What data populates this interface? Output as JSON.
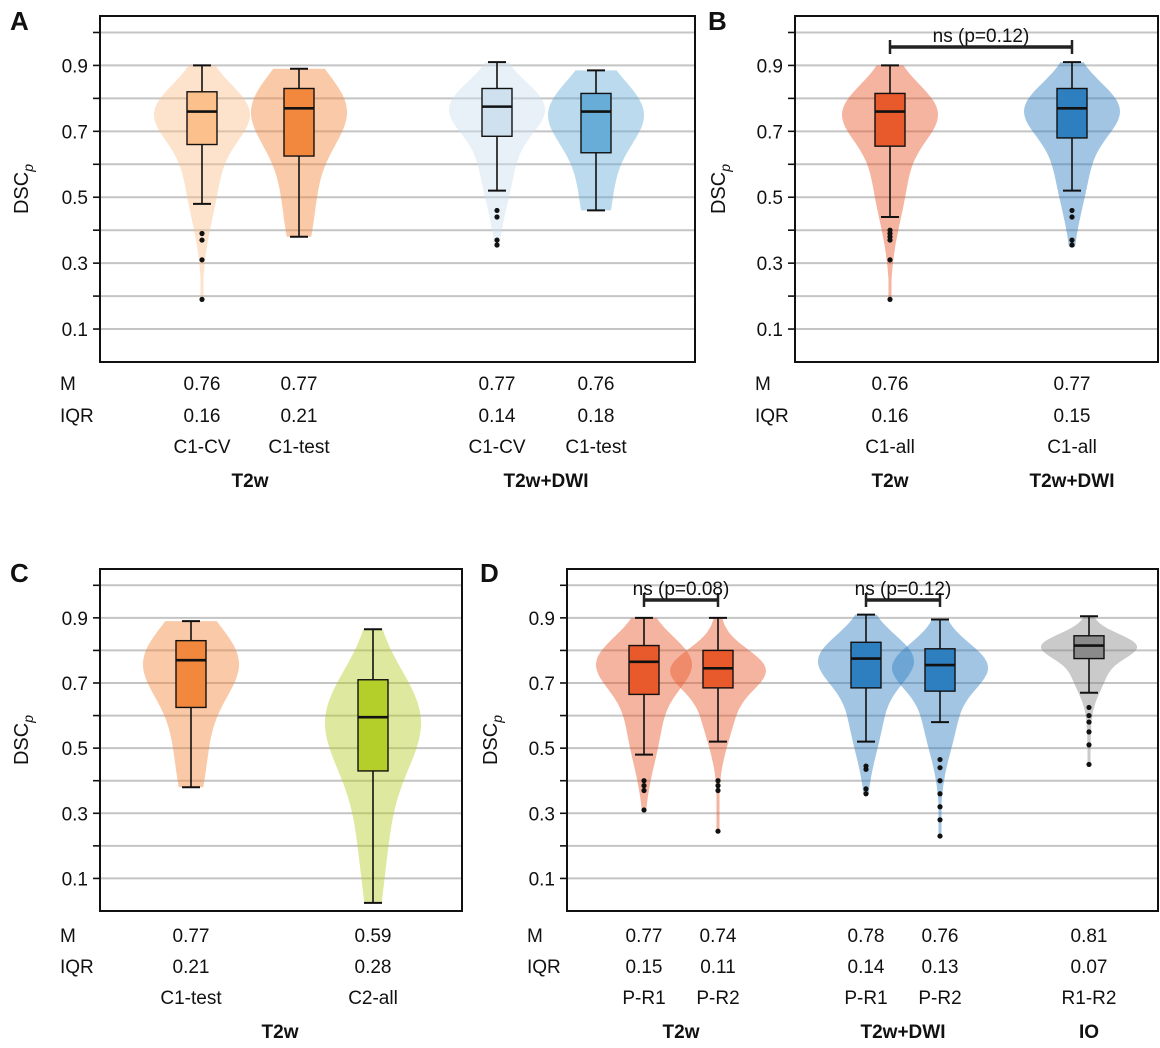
{
  "stat_labels": {
    "median": "M",
    "iqr": "IQR"
  },
  "colors": {
    "t2w_light": "#fbc08c",
    "t2w_mid": "#f2883d",
    "t2w_dark": "#e8592b",
    "dwi_light": "#cfe1ef",
    "dwi_mid": "#68acd8",
    "dwi_dark": "#2e7fc0",
    "c2": "#b5cf2a",
    "io": "#8a8a8a"
  },
  "chart_data": [
    {
      "panel": "A",
      "type": "violin",
      "ylabel": "DSC",
      "ylabel_sub": "p",
      "ylim": [
        0,
        1.05
      ],
      "yticks": [
        "0.1",
        "0.3",
        "0.5",
        "0.7",
        "0.9"
      ],
      "grid": true,
      "violins": [
        {
          "name": "C1-CV",
          "group": "T2w",
          "color": "#fbc08c",
          "median": 0.76,
          "q1": 0.66,
          "q3": 0.82,
          "whisker_low": 0.48,
          "whisker_high": 0.9,
          "min": 0.19,
          "max": 0.9,
          "outliers": [
            0.19,
            0.31,
            0.37,
            0.39
          ],
          "M": "0.76",
          "IQR": "0.16"
        },
        {
          "name": "C1-test",
          "group": "T2w",
          "color": "#f2883d",
          "median": 0.77,
          "q1": 0.625,
          "q3": 0.83,
          "whisker_low": 0.38,
          "whisker_high": 0.89,
          "min": 0.38,
          "max": 0.89,
          "outliers": [],
          "M": "0.77",
          "IQR": "0.21"
        },
        {
          "name": "C1-CV",
          "group": "T2w+DWI",
          "color": "#cfe1ef",
          "median": 0.775,
          "q1": 0.685,
          "q3": 0.83,
          "whisker_low": 0.52,
          "whisker_high": 0.91,
          "min": 0.35,
          "max": 0.91,
          "outliers": [
            0.355,
            0.37,
            0.44,
            0.46
          ],
          "M": "0.77",
          "IQR": "0.14"
        },
        {
          "name": "C1-test",
          "group": "T2w+DWI",
          "color": "#68acd8",
          "median": 0.76,
          "q1": 0.635,
          "q3": 0.815,
          "whisker_low": 0.46,
          "whisker_high": 0.885,
          "min": 0.46,
          "max": 0.885,
          "outliers": [],
          "M": "0.76",
          "IQR": "0.18"
        }
      ],
      "groups": [
        "T2w",
        "T2w+DWI"
      ],
      "annotations": []
    },
    {
      "panel": "B",
      "type": "violin",
      "ylabel": "DSC",
      "ylabel_sub": "p",
      "ylim": [
        0,
        1.05
      ],
      "yticks": [
        "0.1",
        "0.3",
        "0.5",
        "0.7",
        "0.9"
      ],
      "grid": true,
      "violins": [
        {
          "name": "C1-all",
          "group": "T2w",
          "color": "#e8592b",
          "median": 0.76,
          "q1": 0.655,
          "q3": 0.815,
          "whisker_low": 0.44,
          "whisker_high": 0.9,
          "min": 0.19,
          "max": 0.9,
          "outliers": [
            0.19,
            0.31,
            0.37,
            0.38,
            0.39,
            0.4
          ],
          "M": "0.76",
          "IQR": "0.16"
        },
        {
          "name": "C1-all",
          "group": "T2w+DWI",
          "color": "#2e7fc0",
          "median": 0.77,
          "q1": 0.68,
          "q3": 0.83,
          "whisker_low": 0.52,
          "whisker_high": 0.91,
          "min": 0.35,
          "max": 0.91,
          "outliers": [
            0.355,
            0.37,
            0.44,
            0.46
          ],
          "M": "0.77",
          "IQR": "0.15"
        }
      ],
      "groups": [
        "T2w",
        "T2w+DWI"
      ],
      "annotations": [
        {
          "text": "ns (p=0.12)",
          "from": 0,
          "to": 1
        }
      ]
    },
    {
      "panel": "C",
      "type": "violin",
      "ylabel": "DSC",
      "ylabel_sub": "p",
      "ylim": [
        0,
        1.05
      ],
      "yticks": [
        "0.1",
        "0.3",
        "0.5",
        "0.7",
        "0.9"
      ],
      "grid": true,
      "violins": [
        {
          "name": "C1-test",
          "group": "T2w",
          "color": "#f2883d",
          "median": 0.77,
          "q1": 0.625,
          "q3": 0.83,
          "whisker_low": 0.38,
          "whisker_high": 0.89,
          "min": 0.38,
          "max": 0.89,
          "outliers": [],
          "M": "0.77",
          "IQR": "0.21"
        },
        {
          "name": "C2-all",
          "group": "T2w",
          "color": "#b5cf2a",
          "median": 0.595,
          "q1": 0.43,
          "q3": 0.71,
          "whisker_low": 0.025,
          "whisker_high": 0.865,
          "min": 0.025,
          "max": 0.865,
          "outliers": [],
          "M": "0.59",
          "IQR": "0.28"
        }
      ],
      "groups": [
        "T2w"
      ],
      "annotations": []
    },
    {
      "panel": "D",
      "type": "violin",
      "ylabel": "DSC",
      "ylabel_sub": "p",
      "ylim": [
        0,
        1.05
      ],
      "yticks": [
        "0.1",
        "0.3",
        "0.5",
        "0.7",
        "0.9"
      ],
      "grid": true,
      "violins": [
        {
          "name": "P-R1",
          "group": "T2w",
          "color": "#e8592b",
          "median": 0.765,
          "q1": 0.665,
          "q3": 0.815,
          "whisker_low": 0.48,
          "whisker_high": 0.9,
          "min": 0.31,
          "max": 0.9,
          "outliers": [
            0.31,
            0.37,
            0.385,
            0.4
          ],
          "M": "0.77",
          "IQR": "0.15"
        },
        {
          "name": "P-R2",
          "group": "T2w",
          "color": "#e8592b",
          "median": 0.745,
          "q1": 0.685,
          "q3": 0.8,
          "whisker_low": 0.52,
          "whisker_high": 0.9,
          "min": 0.245,
          "max": 0.9,
          "outliers": [
            0.245,
            0.37,
            0.385,
            0.4
          ],
          "M": "0.74",
          "IQR": "0.11"
        },
        {
          "name": "P-R1",
          "group": "T2w+DWI",
          "color": "#2e7fc0",
          "median": 0.775,
          "q1": 0.685,
          "q3": 0.825,
          "whisker_low": 0.52,
          "whisker_high": 0.91,
          "min": 0.36,
          "max": 0.91,
          "outliers": [
            0.36,
            0.375,
            0.435,
            0.445
          ],
          "M": "0.78",
          "IQR": "0.14"
        },
        {
          "name": "P-R2",
          "group": "T2w+DWI",
          "color": "#2e7fc0",
          "median": 0.755,
          "q1": 0.675,
          "q3": 0.805,
          "whisker_low": 0.58,
          "whisker_high": 0.895,
          "min": 0.23,
          "max": 0.895,
          "outliers": [
            0.23,
            0.28,
            0.32,
            0.36,
            0.4,
            0.44,
            0.465
          ],
          "M": "0.76",
          "IQR": "0.13"
        },
        {
          "name": "R1-R2",
          "group": "IO",
          "color": "#8a8a8a",
          "median": 0.815,
          "q1": 0.775,
          "q3": 0.845,
          "whisker_low": 0.67,
          "whisker_high": 0.905,
          "min": 0.45,
          "max": 0.905,
          "outliers": [
            0.45,
            0.51,
            0.55,
            0.58,
            0.6,
            0.625
          ],
          "M": "0.81",
          "IQR": "0.07"
        }
      ],
      "groups": [
        "T2w",
        "T2w+DWI",
        "IO"
      ],
      "annotations": [
        {
          "text": "ns (p=0.08)",
          "from": 0,
          "to": 1
        },
        {
          "text": "ns (p=0.12)",
          "from": 2,
          "to": 3
        }
      ]
    }
  ]
}
